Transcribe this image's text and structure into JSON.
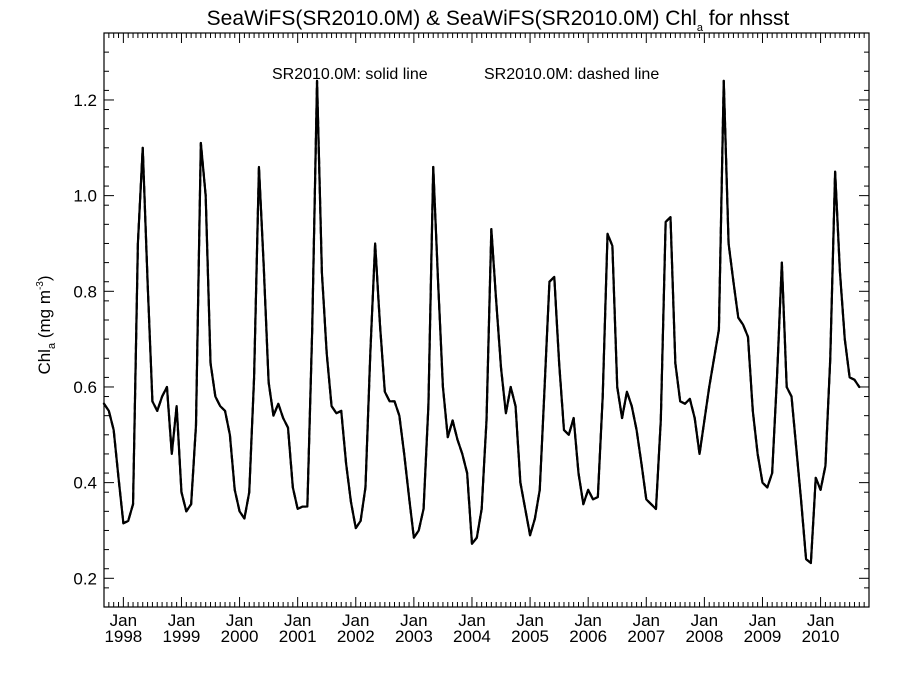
{
  "title": {
    "main": "SeaWiFS(SR2010.0M) & SeaWiFS(SR2010.0M)  Chl",
    "sub": "a",
    "tail": " for nhsst"
  },
  "legend": {
    "solid": "SR2010.0M: solid line",
    "dashed": "SR2010.0M: dashed line"
  },
  "ylabel": {
    "main": "Chl",
    "sub": "a",
    "units": " (mg m",
    "sup": "-3",
    "close": ")"
  },
  "chart_data": {
    "type": "line",
    "xlim": [
      "1997-09",
      "2010-11"
    ],
    "ylim": [
      0.14,
      1.34
    ],
    "yticks": [
      0.2,
      0.4,
      0.6,
      0.8,
      1.0,
      1.2
    ],
    "ytick_labels": [
      "0.2",
      "0.4",
      "0.6",
      "0.8",
      "1.0",
      "1.2"
    ],
    "xticks": [
      {
        "month": "Jan",
        "year": "1998",
        "date": "1998-01"
      },
      {
        "month": "Jan",
        "year": "1999",
        "date": "1999-01"
      },
      {
        "month": "Jan",
        "year": "2000",
        "date": "2000-01"
      },
      {
        "month": "Jan",
        "year": "2001",
        "date": "2001-01"
      },
      {
        "month": "Jan",
        "year": "2002",
        "date": "2002-01"
      },
      {
        "month": "Jan",
        "year": "2003",
        "date": "2003-01"
      },
      {
        "month": "Jan",
        "year": "2004",
        "date": "2004-01"
      },
      {
        "month": "Jan",
        "year": "2005",
        "date": "2005-01"
      },
      {
        "month": "Jan",
        "year": "2006",
        "date": "2006-01"
      },
      {
        "month": "Jan",
        "year": "2007",
        "date": "2007-01"
      },
      {
        "month": "Jan",
        "year": "2008",
        "date": "2008-01"
      },
      {
        "month": "Jan",
        "year": "2009",
        "date": "2009-01"
      },
      {
        "month": "Jan",
        "year": "2010",
        "date": "2010-01"
      }
    ],
    "grid": false,
    "color": "#000000",
    "series": [
      {
        "name": "SR2010.0M: solid line",
        "style": "solid",
        "start": "1997-09",
        "values": [
          0.565,
          0.55,
          0.51,
          0.41,
          0.315,
          0.32,
          0.355,
          0.9,
          1.1,
          0.82,
          0.57,
          0.55,
          0.58,
          0.6,
          0.46,
          0.56,
          0.38,
          0.34,
          0.355,
          0.52,
          1.11,
          1.0,
          0.65,
          0.58,
          0.56,
          0.55,
          0.5,
          0.385,
          0.34,
          0.325,
          0.38,
          0.62,
          1.06,
          0.85,
          0.61,
          0.54,
          0.565,
          0.535,
          0.515,
          0.39,
          0.345,
          0.35,
          0.35,
          0.72,
          1.24,
          0.84,
          0.67,
          0.56,
          0.545,
          0.55,
          0.44,
          0.36,
          0.305,
          0.32,
          0.39,
          0.67,
          0.9,
          0.73,
          0.59,
          0.57,
          0.57,
          0.54,
          0.46,
          0.37,
          0.285,
          0.3,
          0.345,
          0.56,
          1.06,
          0.82,
          0.6,
          0.495,
          0.53,
          0.49,
          0.46,
          0.42,
          0.272,
          0.285,
          0.345,
          0.53,
          0.93,
          0.78,
          0.64,
          0.545,
          0.6,
          0.56,
          0.4,
          0.345,
          0.29,
          0.325,
          0.385,
          0.6,
          0.82,
          0.83,
          0.65,
          0.51,
          0.5,
          0.535,
          0.42,
          0.355,
          0.385,
          0.365,
          0.37,
          0.58,
          0.92,
          0.895,
          0.6,
          0.535,
          0.59,
          0.56,
          0.51,
          0.44,
          0.365,
          0.355,
          0.345,
          0.53,
          0.945,
          0.955,
          0.65,
          0.57,
          0.565,
          0.575,
          0.535,
          0.46,
          0.53,
          0.6,
          0.66,
          0.72,
          1.24,
          0.9,
          0.82,
          0.745,
          0.73,
          0.705,
          0.55,
          0.46,
          0.4,
          0.39,
          0.42,
          0.62,
          0.86,
          0.6,
          0.58,
          0.47,
          0.36,
          0.24,
          0.232,
          0.41,
          0.385,
          0.435,
          0.66,
          1.05,
          0.84,
          0.7,
          0.62,
          0.615,
          0.6
        ]
      },
      {
        "name": "SR2010.0M: dashed line",
        "style": "dashed",
        "start": "1997-09",
        "values": [
          0.565,
          0.55,
          0.51,
          0.41,
          0.315,
          0.32,
          0.355,
          0.9,
          1.1,
          0.82,
          0.57,
          0.55,
          0.58,
          0.6,
          0.46,
          0.56,
          0.38,
          0.34,
          0.355,
          0.52,
          1.11,
          1.0,
          0.65,
          0.58,
          0.56,
          0.55,
          0.5,
          0.385,
          0.34,
          0.325,
          0.38,
          0.62,
          1.06,
          0.85,
          0.61,
          0.54,
          0.565,
          0.535,
          0.515,
          0.39,
          0.345,
          0.35,
          0.35,
          0.72,
          1.24,
          0.84,
          0.67,
          0.56,
          0.545,
          0.55,
          0.44,
          0.36,
          0.305,
          0.32,
          0.39,
          0.67,
          0.9,
          0.73,
          0.59,
          0.57,
          0.57,
          0.54,
          0.46,
          0.37,
          0.285,
          0.3,
          0.345,
          0.56,
          1.06,
          0.82,
          0.6,
          0.495,
          0.53,
          0.49,
          0.46,
          0.42,
          0.272,
          0.285,
          0.345,
          0.53,
          0.93,
          0.78,
          0.64,
          0.545,
          0.6,
          0.56,
          0.4,
          0.345,
          0.29,
          0.325,
          0.385,
          0.6,
          0.82,
          0.83,
          0.65,
          0.51,
          0.5,
          0.535,
          0.42,
          0.355,
          0.385,
          0.365,
          0.37,
          0.58,
          0.92,
          0.895,
          0.6,
          0.535,
          0.59,
          0.56,
          0.51,
          0.44,
          0.365,
          0.355,
          0.345,
          0.53,
          0.945,
          0.955,
          0.65,
          0.57,
          0.565,
          0.575,
          0.535,
          0.46,
          0.53,
          0.6,
          0.66,
          0.72,
          1.24,
          0.9,
          0.82,
          0.745,
          0.73,
          0.705,
          0.55,
          0.46,
          0.4,
          0.39,
          0.42,
          0.62,
          0.86,
          0.6,
          0.58,
          0.47,
          0.36,
          0.24,
          0.232,
          0.41,
          0.385,
          0.435,
          0.66,
          1.05,
          0.84,
          0.7,
          0.62,
          0.615,
          0.6
        ]
      }
    ]
  }
}
